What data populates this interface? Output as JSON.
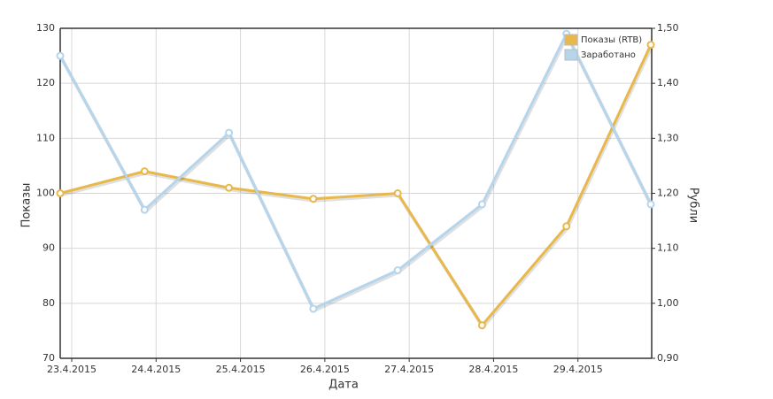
{
  "chart_data": {
    "type": "line",
    "x_label": "Дата",
    "y_label": "Показы",
    "y2_label": "Рубли",
    "categories": [
      "23.4.2015",
      "24.4.2015",
      "25.4.2015",
      "26.4.2015",
      "27.4.2015",
      "28.4.2015",
      "29.4.2015",
      null
    ],
    "series": [
      {
        "name": "Показы (RTB)",
        "color": "#e8b84a",
        "values": [
          100,
          104,
          101,
          99,
          100,
          76,
          94,
          127
        ]
      },
      {
        "name": "Заработано",
        "color": "#b5d5ec",
        "axis": "y2",
        "values": [
          1.45,
          1.17,
          1.31,
          0.99,
          1.06,
          1.18,
          1.49,
          1.18
        ]
      }
    ],
    "ylim": [
      70,
      130
    ],
    "yticks": [
      70,
      80,
      90,
      100,
      110,
      120,
      130
    ],
    "y2lim": [
      0.9,
      1.5
    ],
    "y2ticks": [
      {
        "value": 0.9,
        "label": "0,90"
      },
      {
        "value": 1.0,
        "label": "1,00"
      },
      {
        "value": 1.1,
        "label": "1,10"
      },
      {
        "value": 1.2,
        "label": "1,20"
      },
      {
        "value": 1.3,
        "label": "1,30"
      },
      {
        "value": 1.4,
        "label": "1,40"
      },
      {
        "value": 1.5,
        "label": "1,50"
      }
    ],
    "grid": true,
    "legend": "top-right"
  }
}
